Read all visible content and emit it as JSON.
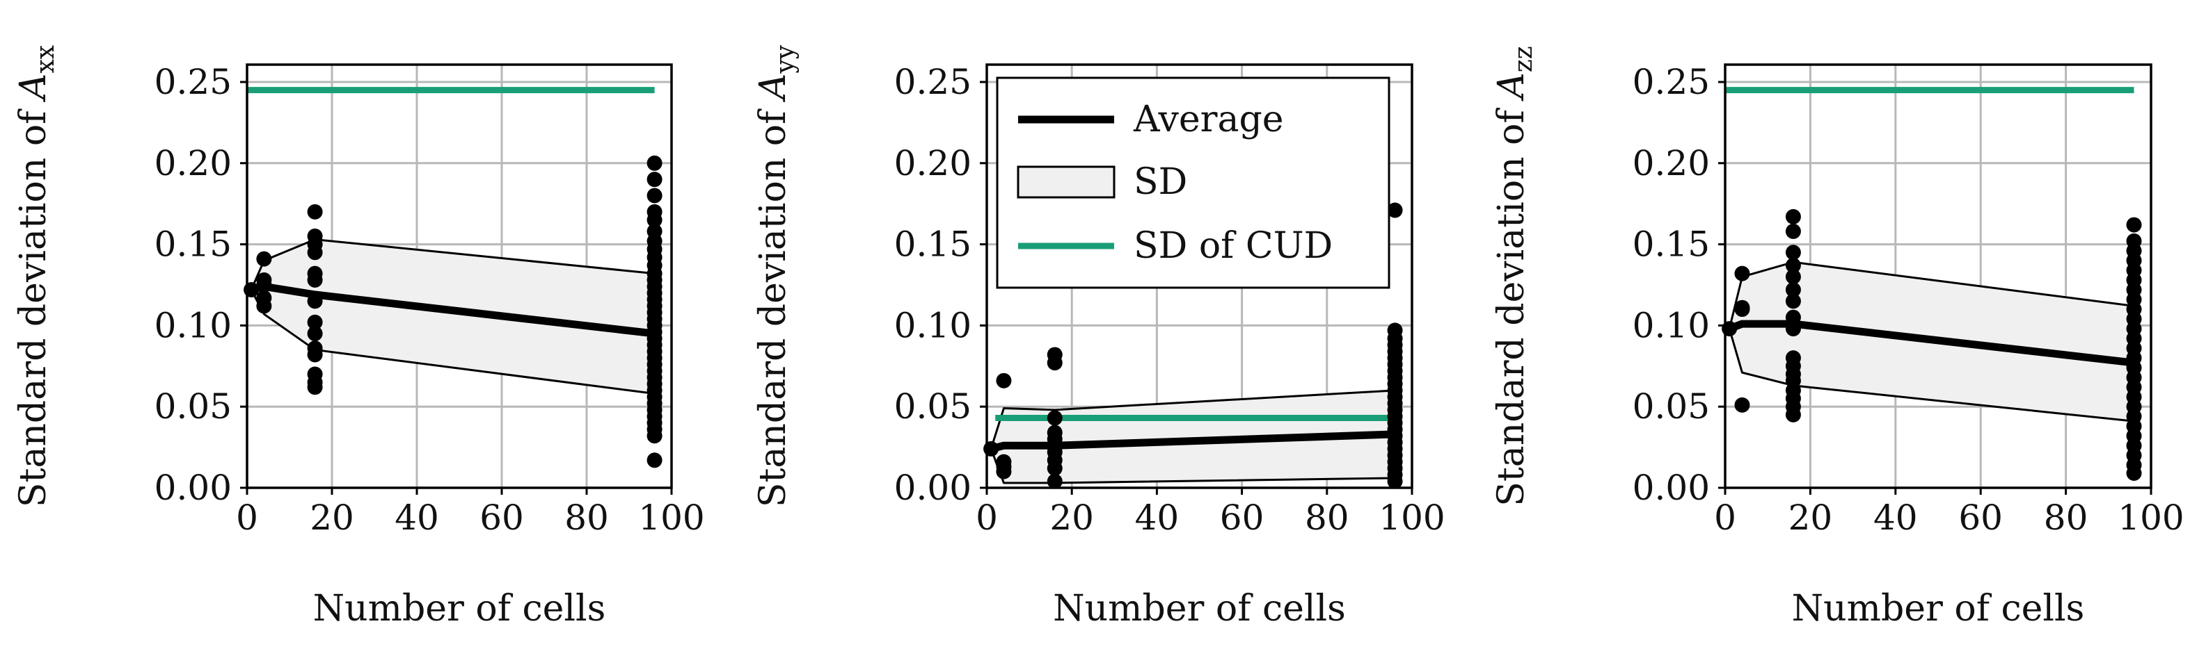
{
  "colors": {
    "average": "#000000",
    "sd_fill": "#f0f0f0",
    "sd_edge": "#000000",
    "cud": "#1a9e77",
    "points": "#000000",
    "grid": "#b8b8b8"
  },
  "chart_data": [
    {
      "type": "line",
      "ylabel_text": "Standard deviation of ",
      "ylabel_symbol": "A",
      "ylabel_sub": "xx",
      "xlabel": "Number of cells",
      "xlim": [
        0,
        100
      ],
      "ylim": [
        0,
        0.25
      ],
      "xticks": [
        "0",
        "20",
        "40",
        "60",
        "80",
        "100"
      ],
      "yticks": [
        "0.00",
        "0.05",
        "0.10",
        "0.15",
        "0.20",
        "0.25"
      ],
      "grid": true,
      "series": [
        {
          "name": "Average",
          "x": [
            1,
            4,
            16,
            96
          ],
          "y": [
            0.122,
            0.124,
            0.119,
            0.095
          ]
        },
        {
          "name": "SD",
          "x": [
            1,
            4,
            16,
            96
          ],
          "upper": [
            0.122,
            0.14,
            0.153,
            0.132
          ],
          "lower": [
            0.122,
            0.107,
            0.085,
            0.058
          ]
        },
        {
          "name": "SD of CUD",
          "x": [
            0,
            96
          ],
          "y": [
            0.245,
            0.245
          ]
        }
      ],
      "points": [
        {
          "x": 1,
          "y": [
            0.122
          ]
        },
        {
          "x": 4,
          "y": [
            0.141,
            0.128,
            0.125,
            0.117,
            0.112
          ]
        },
        {
          "x": 16,
          "y": [
            0.17,
            0.155,
            0.15,
            0.145,
            0.132,
            0.128,
            0.115,
            0.102,
            0.095,
            0.086,
            0.082,
            0.07,
            0.065,
            0.062
          ]
        },
        {
          "x": 96,
          "y": [
            0.2,
            0.19,
            0.18,
            0.17,
            0.165,
            0.158,
            0.152,
            0.147,
            0.142,
            0.137,
            0.132,
            0.128,
            0.124,
            0.12,
            0.116,
            0.112,
            0.108,
            0.104,
            0.1,
            0.096,
            0.092,
            0.088,
            0.084,
            0.08,
            0.076,
            0.072,
            0.068,
            0.064,
            0.06,
            0.056,
            0.052,
            0.048,
            0.044,
            0.04,
            0.036,
            0.032,
            0.017
          ]
        }
      ]
    },
    {
      "type": "line",
      "ylabel_text": "Standard deviation of ",
      "ylabel_symbol": "A",
      "ylabel_sub": "yy",
      "xlabel": "Number of cells",
      "xlim": [
        0,
        100
      ],
      "ylim": [
        0,
        0.25
      ],
      "xticks": [
        "0",
        "20",
        "40",
        "60",
        "80",
        "100"
      ],
      "yticks": [
        "0.00",
        "0.05",
        "0.10",
        "0.15",
        "0.20",
        "0.25"
      ],
      "grid": true,
      "legend": {
        "placement": "upper-left",
        "entries": [
          "Average",
          "SD",
          "SD of CUD"
        ]
      },
      "series": [
        {
          "name": "Average",
          "x": [
            1,
            4,
            16,
            96
          ],
          "y": [
            0.024,
            0.026,
            0.026,
            0.033
          ]
        },
        {
          "name": "SD",
          "x": [
            1,
            4,
            16,
            96
          ],
          "upper": [
            0.024,
            0.049,
            0.048,
            0.06
          ],
          "lower": [
            0.024,
            0.003,
            0.003,
            0.006
          ]
        },
        {
          "name": "SD of CUD",
          "x": [
            2,
            96
          ],
          "y": [
            0.043,
            0.043
          ]
        }
      ],
      "points": [
        {
          "x": 1,
          "y": [
            0.024
          ]
        },
        {
          "x": 4,
          "y": [
            0.066,
            0.016,
            0.013,
            0.01
          ]
        },
        {
          "x": 16,
          "y": [
            0.082,
            0.077,
            0.043,
            0.034,
            0.03,
            0.026,
            0.022,
            0.017,
            0.012,
            0.004
          ]
        },
        {
          "x": 96,
          "y": [
            0.171,
            0.097,
            0.092,
            0.088,
            0.084,
            0.08,
            0.076,
            0.072,
            0.068,
            0.064,
            0.06,
            0.056,
            0.052,
            0.048,
            0.044,
            0.04,
            0.036,
            0.032,
            0.028,
            0.024,
            0.02,
            0.016,
            0.012,
            0.008,
            0.004
          ]
        }
      ]
    },
    {
      "type": "line",
      "ylabel_text": "Standard deviation of ",
      "ylabel_symbol": "A",
      "ylabel_sub": "zz",
      "xlabel": "Number of cells",
      "xlim": [
        0,
        100
      ],
      "ylim": [
        0,
        0.25
      ],
      "xticks": [
        "0",
        "20",
        "40",
        "60",
        "80",
        "100"
      ],
      "yticks": [
        "0.00",
        "0.05",
        "0.10",
        "0.15",
        "0.20",
        "0.25"
      ],
      "grid": true,
      "series": [
        {
          "name": "Average",
          "x": [
            1,
            4,
            16,
            96
          ],
          "y": [
            0.098,
            0.101,
            0.101,
            0.077
          ]
        },
        {
          "name": "SD",
          "x": [
            1,
            4,
            16,
            96
          ],
          "upper": [
            0.098,
            0.13,
            0.139,
            0.112
          ],
          "lower": [
            0.098,
            0.071,
            0.063,
            0.041
          ]
        },
        {
          "name": "SD of CUD",
          "x": [
            0,
            96
          ],
          "y": [
            0.245,
            0.245
          ]
        }
      ],
      "points": [
        {
          "x": 1,
          "y": [
            0.098
          ]
        },
        {
          "x": 4,
          "y": [
            0.132,
            0.111,
            0.11,
            0.051
          ]
        },
        {
          "x": 16,
          "y": [
            0.167,
            0.158,
            0.145,
            0.137,
            0.13,
            0.122,
            0.115,
            0.105,
            0.098,
            0.08,
            0.075,
            0.07,
            0.066,
            0.06,
            0.055,
            0.05,
            0.045
          ]
        },
        {
          "x": 96,
          "y": [
            0.162,
            0.152,
            0.146,
            0.14,
            0.134,
            0.128,
            0.122,
            0.116,
            0.11,
            0.104,
            0.098,
            0.092,
            0.086,
            0.08,
            0.074,
            0.068,
            0.062,
            0.056,
            0.05,
            0.044,
            0.038,
            0.032,
            0.026,
            0.02,
            0.014,
            0.009
          ]
        }
      ]
    }
  ]
}
